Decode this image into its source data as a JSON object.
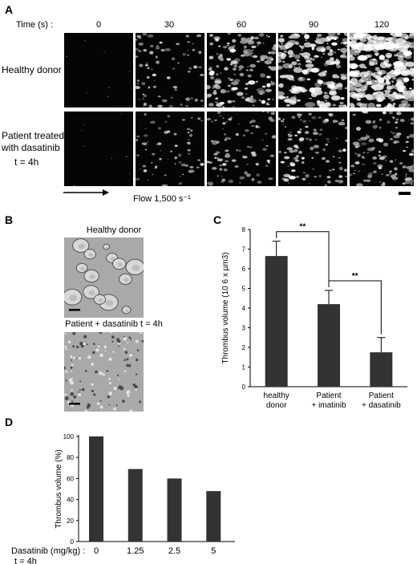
{
  "panel_a": {
    "letter": "A",
    "time_label": "Time (s) :",
    "timepoints": [
      "0",
      "30",
      "60",
      "90",
      "120"
    ],
    "row_labels": [
      {
        "lines": [
          "Healthy donor"
        ]
      },
      {
        "lines": [
          "Patient treated",
          "with dasatinib",
          "t = 4h"
        ]
      }
    ],
    "flow_label": "Flow 1,500 s⁻¹"
  },
  "panel_b": {
    "letter": "B",
    "top_label": "Healthy donor",
    "bottom_label": "Patient + dasatinib t = 4h"
  },
  "chart_data": [
    {
      "panel": "C",
      "type": "bar",
      "categories": [
        [
          "healthy",
          "donor"
        ],
        [
          "Patient",
          "+ imatinib"
        ],
        [
          "Patient",
          "+ dasatinib"
        ]
      ],
      "values": [
        6.65,
        4.2,
        1.75
      ],
      "errors": [
        0.75,
        0.7,
        0.75
      ],
      "ylabel": "Thrombus volume (10 6 x µm3)",
      "ylim": [
        0,
        8
      ],
      "yticks": [
        0,
        1,
        2,
        3,
        4,
        5,
        6,
        7,
        8
      ],
      "significance": [
        {
          "between": [
            0,
            1
          ],
          "label": "**"
        },
        {
          "between": [
            1,
            2
          ],
          "label": "**"
        }
      ],
      "bar_color": "#333333",
      "grid": false
    },
    {
      "panel": "D",
      "type": "bar",
      "categories": [
        "0",
        "1.25",
        "2.5",
        "5"
      ],
      "values": [
        100,
        69,
        60,
        48
      ],
      "ylabel": "Thrombus volume (%)",
      "ylim": [
        0,
        100
      ],
      "yticks": [
        0,
        20,
        40,
        60,
        80,
        100
      ],
      "xlabel_lines": [
        "Dasatinib (mg/kg) :",
        "t = 4h"
      ],
      "bar_color": "#333333",
      "grid": false
    }
  ]
}
